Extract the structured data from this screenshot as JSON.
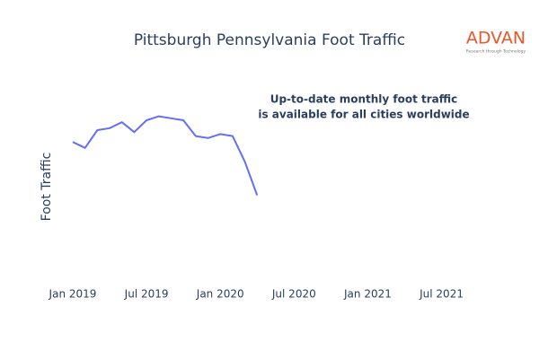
{
  "chart_data": {
    "type": "line",
    "title": "Pittsburgh Pennsylvania Foot Traffic",
    "y_label": "Foot Traffic",
    "annotations": [
      "Up-to-date monthly foot traffic",
      "is available for all cities worldwide"
    ],
    "logo": "ADVAN",
    "logo_tagline": "Research through Technology",
    "x": [
      "2019-01",
      "2019-02",
      "2019-03",
      "2019-04",
      "2019-05",
      "2019-06",
      "2019-07",
      "2019-08",
      "2019-09",
      "2019-10",
      "2019-11",
      "2019-12",
      "2020-01",
      "2020-02",
      "2020-03",
      "2020-04"
    ],
    "series": [
      {
        "name": "Foot Traffic",
        "color": "#636efa",
        "values": [
          69,
          66,
          75,
          76,
          79,
          74,
          80,
          82,
          81,
          80,
          72,
          71,
          73,
          72,
          59,
          42
        ]
      }
    ],
    "xlim": [
      "2018-11-15",
      "2021-10-15"
    ],
    "xticks": [
      {
        "value": "2019-01",
        "label": "Jan 2019"
      },
      {
        "value": "2019-07",
        "label": "Jul 2019"
      },
      {
        "value": "2020-01",
        "label": "Jan 2020"
      },
      {
        "value": "2020-07",
        "label": "Jul 2020"
      },
      {
        "value": "2021-01",
        "label": "Jan 2021"
      },
      {
        "value": "2021-07",
        "label": "Jul 2021"
      }
    ],
    "ylim": [
      0,
      100
    ],
    "grid": false
  }
}
